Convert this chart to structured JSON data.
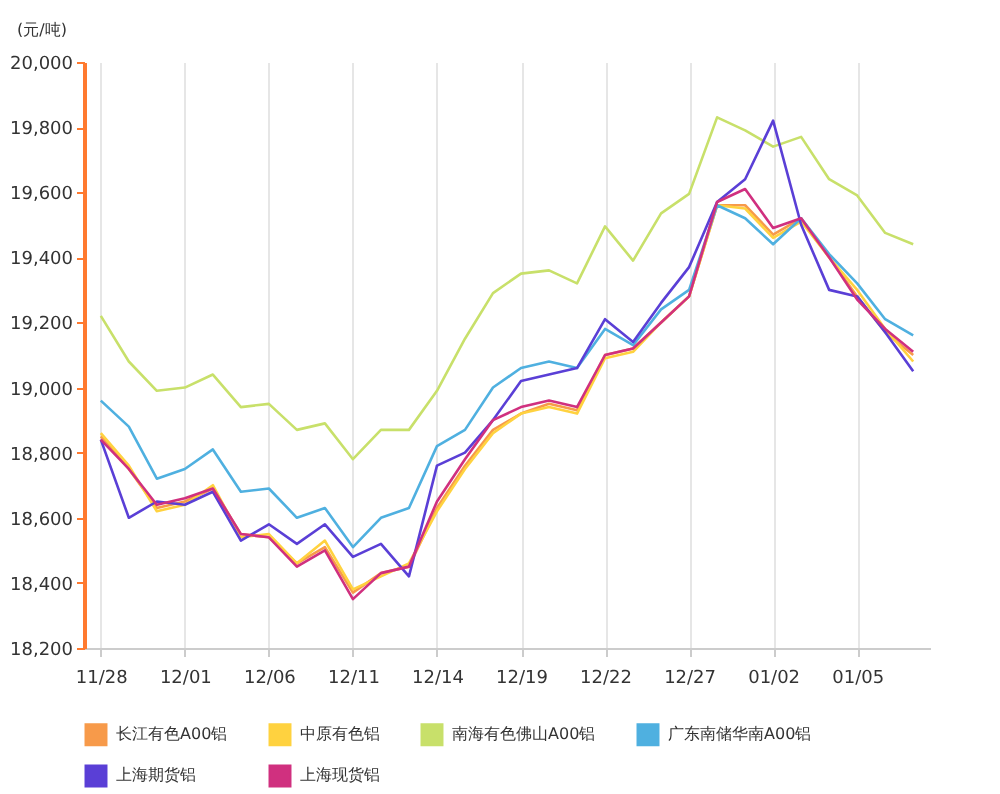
{
  "chart_data": {
    "type": "line",
    "ylabel": "(元/吨)",
    "categories": [
      "11/28",
      null,
      null,
      "12/01",
      null,
      null,
      "12/06",
      null,
      null,
      "12/11",
      null,
      null,
      "12/14",
      null,
      null,
      "12/19",
      null,
      null,
      "12/22",
      null,
      null,
      "12/27",
      null,
      null,
      "01/02",
      null,
      null,
      "01/05",
      null,
      null
    ],
    "ylim": [
      18200,
      20000
    ],
    "yticks": [
      {
        "value": 18200,
        "label": "18,200"
      },
      {
        "value": 18400,
        "label": "18,400"
      },
      {
        "value": 18600,
        "label": "18,600"
      },
      {
        "value": 18800,
        "label": "18,800"
      },
      {
        "value": 19000,
        "label": "19,000"
      },
      {
        "value": 19200,
        "label": "19,200"
      },
      {
        "value": 19400,
        "label": "19,400"
      },
      {
        "value": 19600,
        "label": "19,600"
      },
      {
        "value": 19800,
        "label": "19,800"
      },
      {
        "value": 20000,
        "label": "20,000"
      }
    ],
    "grid": "x",
    "legend": "bottom",
    "marker": "none",
    "line_style": "solid",
    "series": [
      {
        "name": "长江有色A00铝",
        "color": "#f79a4a",
        "values": [
          18850,
          18750,
          18630,
          18650,
          18690,
          18550,
          18540,
          18460,
          18510,
          18370,
          18430,
          18450,
          18630,
          18760,
          18870,
          18920,
          18950,
          18930,
          19100,
          19120,
          19200,
          19280,
          19560,
          19560,
          19470,
          19520,
          19400,
          19280,
          19170,
          19100
        ]
      },
      {
        "name": "中原有色铝",
        "color": "#ffd23f",
        "values": [
          18860,
          18760,
          18620,
          18640,
          18700,
          18540,
          18550,
          18460,
          18530,
          18380,
          18420,
          18460,
          18620,
          18750,
          18860,
          18920,
          18940,
          18920,
          19090,
          19110,
          19200,
          19280,
          19560,
          19550,
          19460,
          19510,
          19400,
          19300,
          19180,
          19080
        ]
      },
      {
        "name": "南海有色佛山A00铝",
        "color": "#c8e06a",
        "values": [
          19220,
          19080,
          18990,
          19000,
          19040,
          18940,
          18950,
          18870,
          18890,
          18780,
          18870,
          18870,
          18990,
          19150,
          19290,
          19350,
          19360,
          19320,
          19495,
          19390,
          19535,
          19595,
          19830,
          19790,
          19740,
          19770,
          19640,
          19590,
          19475,
          19440
        ]
      },
      {
        "name": "广东南储华南A00铝",
        "color": "#4fb0e0",
        "values": [
          18960,
          18880,
          18720,
          18750,
          18810,
          18680,
          18690,
          18600,
          18630,
          18510,
          18600,
          18630,
          18820,
          18870,
          19000,
          19060,
          19080,
          19060,
          19180,
          19130,
          19240,
          19300,
          19560,
          19520,
          19440,
          19520,
          19410,
          19320,
          19210,
          19160
        ]
      },
      {
        "name": "上海期货铝",
        "color": "#5a3fd6",
        "values": [
          18840,
          18600,
          18650,
          18640,
          18680,
          18530,
          18580,
          18520,
          18580,
          18480,
          18520,
          18420,
          18760,
          18800,
          18900,
          19020,
          19040,
          19060,
          19210,
          19140,
          19260,
          19370,
          19570,
          19640,
          19820,
          19500,
          19300,
          19280,
          19170,
          19050
        ]
      },
      {
        "name": "上海现货铝",
        "color": "#d0307f",
        "values": [
          18840,
          18750,
          18640,
          18660,
          18690,
          18550,
          18540,
          18450,
          18500,
          18350,
          18430,
          18450,
          18650,
          18780,
          18900,
          18940,
          18960,
          18940,
          19100,
          19120,
          19200,
          19280,
          19570,
          19610,
          19490,
          19520,
          19400,
          19270,
          19180,
          19110
        ]
      }
    ]
  }
}
